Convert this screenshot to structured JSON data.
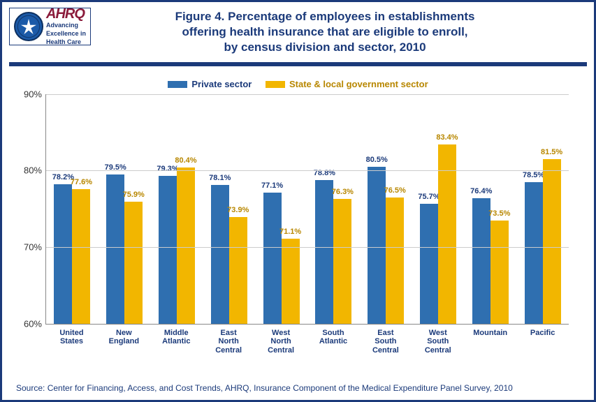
{
  "logo": {
    "ahrq": "AHRQ",
    "tagline1": "Advancing",
    "tagline2": "Excellence in",
    "tagline3": "Health Care"
  },
  "title": {
    "line1": "Figure 4. Percentage of employees in establishments",
    "line2": "offering health insurance that are eligible to enroll,",
    "line3": "by census division and sector, 2010"
  },
  "legend": {
    "series1": "Private sector",
    "series2": "State & local government sector"
  },
  "colors": {
    "private": "#2f6fb0",
    "govt": "#f2b600",
    "title": "#1b3a7a",
    "label_private": "#1b3a7a",
    "label_govt": "#b88700"
  },
  "chart": {
    "ymin": 60,
    "ymax": 90,
    "ystep": 10,
    "categories": [
      "United\nStates",
      "New\nEngland",
      "Middle\nAtlantic",
      "East\nNorth\nCentral",
      "West\nNorth\nCentral",
      "South\nAtlantic",
      "East\nSouth\nCentral",
      "West\nSouth\nCentral",
      "Mountain",
      "Pacific"
    ],
    "private": [
      78.2,
      79.5,
      79.3,
      78.1,
      77.1,
      78.8,
      80.5,
      75.7,
      76.4,
      78.5
    ],
    "govt": [
      77.6,
      75.9,
      80.4,
      73.9,
      71.1,
      76.3,
      76.5,
      83.4,
      73.5,
      81.5
    ]
  },
  "source": "Source: Center for Financing, Access, and Cost Trends, AHRQ, Insurance Component of the Medical Expenditure Panel Survey,  2010"
}
